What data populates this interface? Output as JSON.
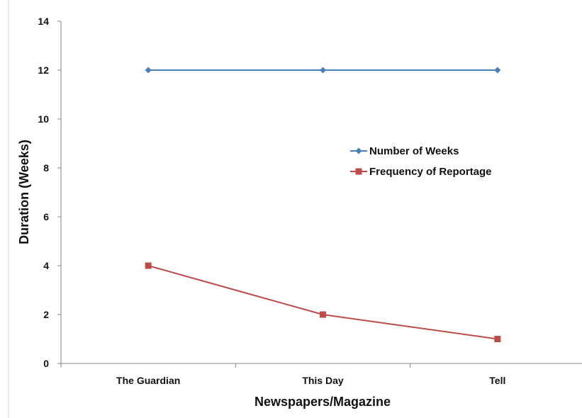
{
  "chart_data": {
    "type": "line",
    "title": "",
    "xlabel": "Newspapers/Magazine",
    "ylabel": "Duration (Weeks)",
    "categories": [
      "The Guardian",
      "This Day",
      "Tell"
    ],
    "ylim": [
      0,
      14
    ],
    "yticks": [
      0,
      2,
      4,
      6,
      8,
      10,
      12,
      14
    ],
    "grid": false,
    "legend_position": "right-center",
    "series": [
      {
        "name": "Number of Weeks",
        "values": [
          12,
          12,
          12
        ],
        "color": "#4a7ebb",
        "marker": "diamond"
      },
      {
        "name": "Frequency of Reportage",
        "values": [
          4,
          2,
          1
        ],
        "color": "#be4b48",
        "marker": "square"
      }
    ]
  }
}
